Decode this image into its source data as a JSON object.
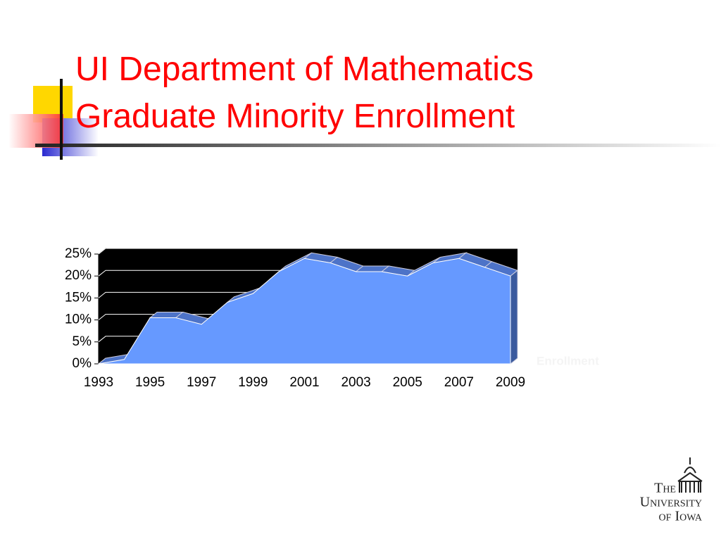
{
  "chart_data": {
    "type": "area",
    "title": "UI Department of Mathematics Graduate Minority Enrollment",
    "categories": [
      "1993",
      null,
      "1995",
      null,
      "1997",
      null,
      "1999",
      null,
      "2001",
      null,
      "2003",
      null,
      "2005",
      null,
      "2007",
      null,
      "2009"
    ],
    "series": [
      {
        "name": "Enrollment",
        "color": "#6699ff",
        "values": [
          0,
          1,
          10.5,
          10.5,
          9,
          14,
          16,
          21,
          24,
          23,
          21,
          21,
          20,
          23,
          24,
          22,
          20
        ]
      }
    ],
    "ylim": [
      0,
      25
    ],
    "yticks": [
      {
        "value": 0,
        "label": "0%"
      },
      {
        "value": 5,
        "label": "5%"
      },
      {
        "value": 10,
        "label": "10%"
      },
      {
        "value": 15,
        "label": "15%"
      },
      {
        "value": 20,
        "label": "20%"
      },
      {
        "value": 25,
        "label": "25%"
      }
    ],
    "grid": true
  },
  "logo": {
    "line1": "The",
    "line2": "University",
    "line3": "of Iowa"
  }
}
